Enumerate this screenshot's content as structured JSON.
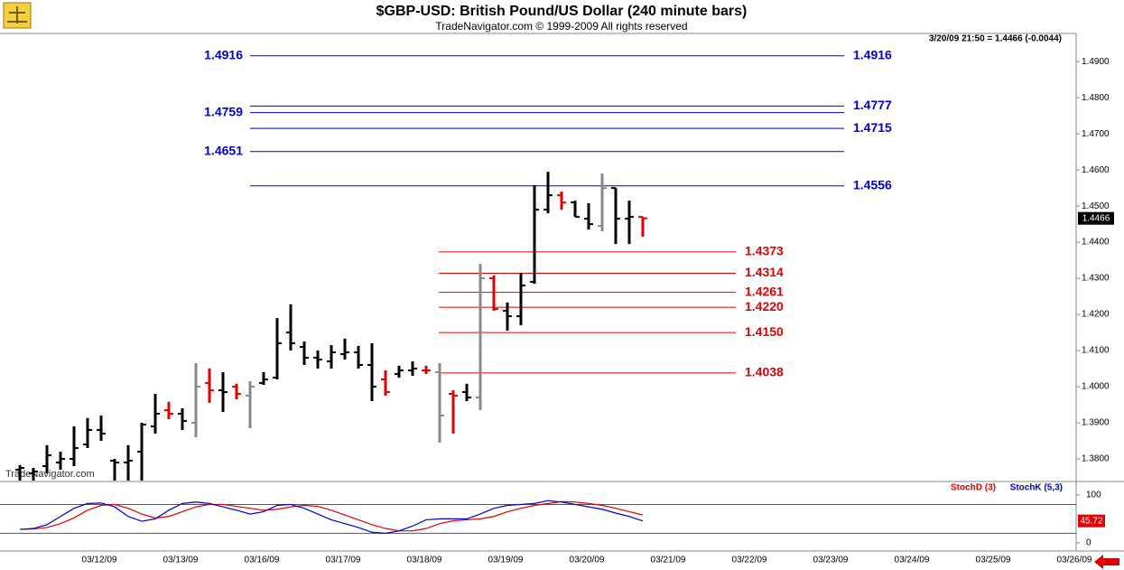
{
  "chart_data": [
    {
      "type": "ohlc",
      "title": "$GBP-USD:  British Pound/US Dollar  (240 minute bars)",
      "subtitle": "TradeNavigator.com © 1999-2009 All rights reserved",
      "status": "3/20/09 21:50 = 1.4466 (-0.0044)",
      "watermark": "TradeNavigator.com",
      "dates": [
        "03/12/09",
        "03/13/09",
        "03/16/09",
        "03/17/09",
        "03/18/09",
        "03/19/09",
        "03/20/09",
        "03/21/09",
        "03/22/09",
        "03/23/09",
        "03/24/09",
        "03/25/09",
        "03/26/09"
      ],
      "open": [
        1.377,
        1.376,
        1.378,
        1.379,
        1.38,
        1.384,
        1.388,
        1.3795,
        1.379,
        1.382,
        1.389,
        1.3935,
        1.3925,
        1.39,
        1.401,
        1.399,
        1.4,
        1.3975,
        1.401,
        1.4025,
        1.415,
        1.411,
        1.408,
        1.407,
        1.409,
        1.4095,
        1.406,
        1.402,
        1.4035,
        1.4045,
        1.4045,
        1.404,
        1.398,
        1.3985,
        1.397,
        1.43,
        1.421,
        1.4195,
        1.429,
        1.449,
        1.453,
        1.451,
        1.4465,
        1.4445,
        1.455,
        1.4465,
        1.447
      ],
      "high": [
        1.3783,
        1.3775,
        1.3838,
        1.382,
        1.389,
        1.3913,
        1.392,
        1.38,
        1.3838,
        1.39,
        1.398,
        1.3958,
        1.394,
        1.4065,
        1.405,
        1.404,
        1.4008,
        1.4015,
        1.404,
        1.419,
        1.4228,
        1.4125,
        1.41,
        1.4115,
        1.4133,
        1.4113,
        1.412,
        1.4045,
        1.4058,
        1.407,
        1.4058,
        1.4065,
        1.399,
        1.4008,
        1.434,
        1.4308,
        1.4233,
        1.4315,
        1.4558,
        1.4595,
        1.454,
        1.4515,
        1.4508,
        1.459,
        1.455,
        1.4515,
        1.447
      ],
      "low": [
        1.374,
        1.374,
        1.376,
        1.377,
        1.378,
        1.383,
        1.385,
        1.374,
        1.374,
        1.374,
        1.387,
        1.391,
        1.388,
        1.386,
        1.3955,
        1.393,
        1.3965,
        1.3885,
        1.4005,
        1.402,
        1.41,
        1.406,
        1.405,
        1.405,
        1.4075,
        1.405,
        1.396,
        1.3975,
        1.4025,
        1.403,
        1.4035,
        1.3845,
        1.387,
        1.396,
        1.3935,
        1.421,
        1.4155,
        1.417,
        1.4285,
        1.448,
        1.449,
        1.447,
        1.4435,
        1.443,
        1.4395,
        1.4395,
        1.4415
      ],
      "close": [
        1.3775,
        1.3765,
        1.381,
        1.38,
        1.383,
        1.388,
        1.387,
        1.379,
        1.3795,
        1.3895,
        1.3925,
        1.3925,
        1.3905,
        1.4,
        1.399,
        1.3985,
        1.398,
        1.4,
        1.402,
        1.412,
        1.412,
        1.408,
        1.4075,
        1.4095,
        1.4095,
        1.406,
        1.4,
        1.3985,
        1.4045,
        1.405,
        1.4045,
        1.392,
        1.3975,
        1.397,
        1.43,
        1.4215,
        1.4195,
        1.428,
        1.449,
        1.453,
        1.451,
        1.447,
        1.445,
        1.455,
        1.4465,
        1.447,
        1.4466
      ],
      "colors": [
        "#000000",
        "#000000",
        "#000000",
        "#000000",
        "#000000",
        "#000000",
        "#000000",
        "#000000",
        "#000000",
        "#000000",
        "#000000",
        "#e00000",
        "#000000",
        "#888888",
        "#e00000",
        "#000000",
        "#e00000",
        "#888888",
        "#000000",
        "#000000",
        "#000000",
        "#000000",
        "#000000",
        "#000000",
        "#000000",
        "#000000",
        "#000000",
        "#e00000",
        "#000000",
        "#000000",
        "#e00000",
        "#888888",
        "#e00000",
        "#000000",
        "#888888",
        "#e00000",
        "#000000",
        "#000000",
        "#000000",
        "#000000",
        "#e00000",
        "#000000",
        "#000000",
        "#888888",
        "#000000",
        "#000000",
        "#e00000"
      ],
      "last": 1.4466,
      "last_label": "1.4466",
      "ylim": [
        1.374,
        1.4978
      ],
      "yticks": [
        {
          "value": 1.38,
          "label": "1.3800"
        },
        {
          "value": 1.39,
          "label": "1.3900"
        },
        {
          "value": 1.4,
          "label": "1.4000"
        },
        {
          "value": 1.41,
          "label": "1.4100"
        },
        {
          "value": 1.42,
          "label": "1.4200"
        },
        {
          "value": 1.43,
          "label": "1.4300"
        },
        {
          "value": 1.44,
          "label": "1.4400"
        },
        {
          "value": 1.45,
          "label": "1.4500"
        },
        {
          "value": 1.46,
          "label": "1.4600"
        },
        {
          "value": 1.47,
          "label": "1.4700"
        },
        {
          "value": 1.48,
          "label": "1.4800"
        },
        {
          "value": 1.49,
          "label": "1.4900"
        }
      ],
      "levels": [
        {
          "color": "#0000cc",
          "values": [
            1.4916,
            1.4777,
            1.4759,
            1.4715,
            1.4651,
            1.4556
          ],
          "value_labels": [
            "1.4916",
            "1.4777",
            "1.4759",
            "1.4715",
            "1.4651",
            "1.4556"
          ]
        },
        {
          "color": "#e00000",
          "values": [
            1.4373,
            1.4314,
            1.4261,
            1.422,
            1.415,
            1.4038
          ],
          "value_labels": [
            "1.4373",
            "1.4314",
            "1.4261",
            "1.4220",
            "1.4150",
            "1.4038"
          ]
        }
      ]
    },
    {
      "type": "line",
      "series": [
        {
          "name": "StochD (3)",
          "color": "#e00000",
          "values": [
            28,
            29,
            32,
            40,
            52,
            68,
            78,
            80,
            72,
            60,
            52,
            55,
            65,
            75,
            80,
            80,
            76,
            72,
            68,
            70,
            75,
            78,
            76,
            68,
            58,
            48,
            38,
            30,
            25,
            25,
            30,
            40,
            46,
            48,
            50,
            55,
            65,
            72,
            78,
            82,
            86,
            85,
            82,
            78,
            72,
            65,
            58
          ]
        },
        {
          "name": "StochK (5,3)",
          "color": "#0000cc",
          "values": [
            28,
            30,
            38,
            55,
            72,
            82,
            83,
            75,
            55,
            45,
            50,
            68,
            82,
            85,
            82,
            75,
            68,
            60,
            65,
            78,
            80,
            72,
            60,
            48,
            40,
            32,
            22,
            20,
            25,
            35,
            48,
            50,
            50,
            50,
            60,
            72,
            78,
            80,
            82,
            88,
            85,
            80,
            75,
            70,
            62,
            55,
            45.72
          ]
        }
      ],
      "ylim": [
        -17,
        126
      ],
      "yticks": [
        0,
        100
      ],
      "levels": [
        20,
        80
      ]
    }
  ]
}
